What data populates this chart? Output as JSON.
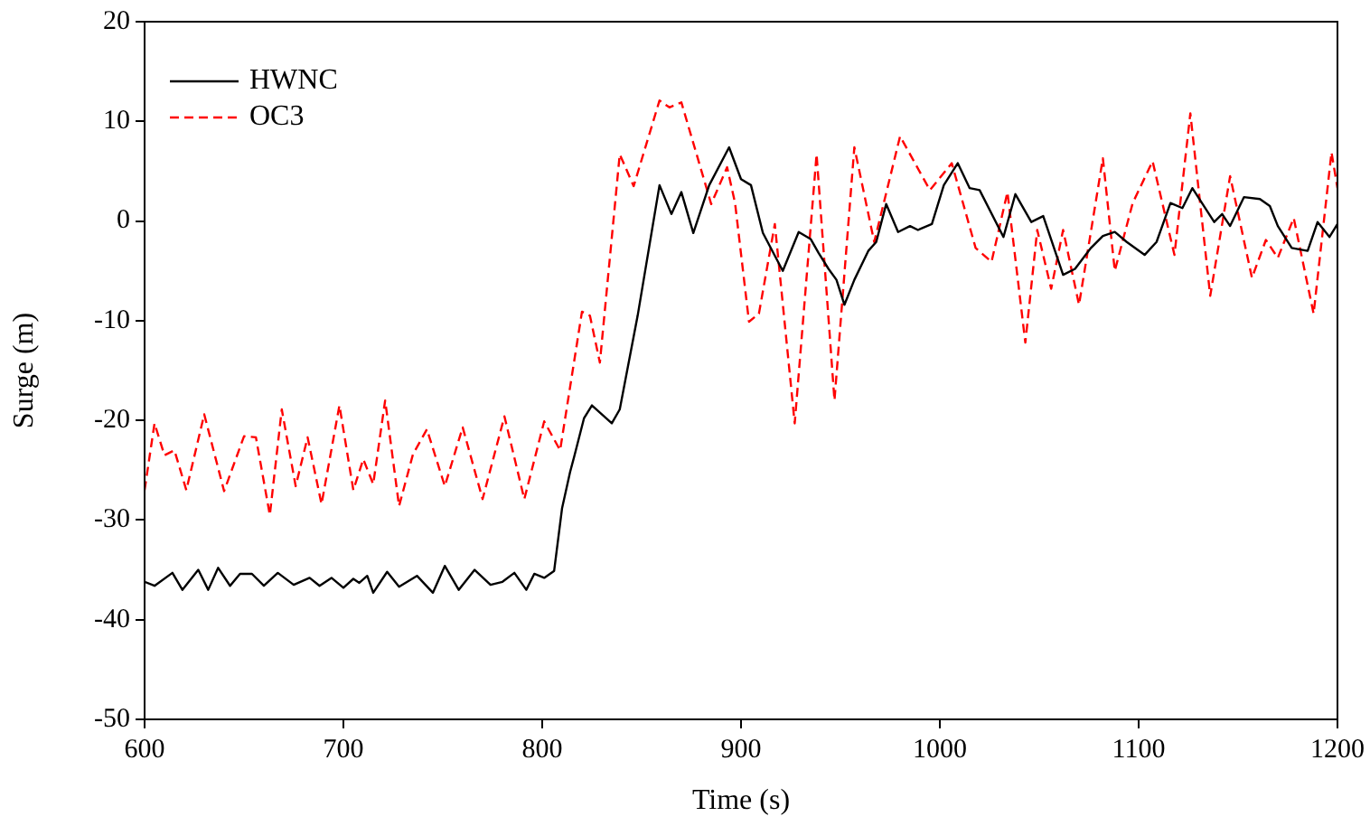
{
  "chart_data": {
    "type": "line",
    "xlabel": "Time (s)",
    "ylabel": "Surge (m)",
    "xlim": [
      600,
      1200
    ],
    "xticks": [
      600,
      700,
      800,
      900,
      1000,
      1100,
      1200
    ],
    "ylim": [
      -50,
      20
    ],
    "yticks": [
      -50,
      -40,
      -30,
      -20,
      -10,
      0,
      10,
      20
    ],
    "grid": false,
    "legend": "top left",
    "marker": "none",
    "series": [
      {
        "name": "HWNC",
        "color": "#000000",
        "line_style": "solid",
        "x": [
          600,
          605,
          614,
          619,
          627,
          632,
          637,
          643,
          648,
          654,
          660,
          667,
          675,
          683,
          688,
          694,
          700,
          705,
          708,
          712,
          715,
          722,
          728,
          737,
          745,
          751,
          758,
          766,
          774,
          780,
          786,
          792,
          796,
          801,
          806,
          810,
          814,
          816,
          821,
          825,
          835,
          839,
          848,
          859,
          865,
          870,
          876,
          884,
          894,
          900,
          905,
          911,
          921,
          929,
          935,
          939,
          944,
          948,
          952,
          957,
          964,
          968,
          973,
          979,
          985,
          989,
          996,
          1002,
          1009,
          1015,
          1020,
          1032,
          1038,
          1046,
          1052,
          1062,
          1068,
          1076,
          1082,
          1088,
          1094,
          1103,
          1109,
          1116,
          1122,
          1127,
          1138,
          1142,
          1146,
          1153,
          1161,
          1166,
          1170,
          1177,
          1185,
          1190,
          1196,
          1200
        ],
        "values": [
          -36.2,
          -36.6,
          -35.3,
          -37.0,
          -35.0,
          -37.0,
          -34.8,
          -36.6,
          -35.4,
          -35.4,
          -36.6,
          -35.3,
          -36.5,
          -35.8,
          -36.6,
          -35.8,
          -36.8,
          -35.9,
          -36.3,
          -35.6,
          -37.3,
          -35.2,
          -36.7,
          -35.6,
          -37.3,
          -34.6,
          -37.0,
          -35.0,
          -36.5,
          -36.2,
          -35.3,
          -37.0,
          -35.4,
          -35.8,
          -35.1,
          -28.8,
          -25.2,
          -23.7,
          -19.8,
          -18.5,
          -20.3,
          -18.9,
          -9.5,
          3.6,
          0.7,
          2.9,
          -1.2,
          3.6,
          7.4,
          4.2,
          3.6,
          -1.2,
          -5.0,
          -1.1,
          -1.8,
          -3.2,
          -4.8,
          -5.9,
          -8.4,
          -5.9,
          -3.0,
          -2.1,
          1.7,
          -1.1,
          -0.5,
          -0.9,
          -0.3,
          3.6,
          5.8,
          3.3,
          3.1,
          -1.6,
          2.7,
          -0.1,
          0.5,
          -5.4,
          -4.8,
          -2.7,
          -1.5,
          -1.1,
          -2.1,
          -3.4,
          -2.1,
          1.8,
          1.3,
          3.3,
          -0.1,
          0.7,
          -0.5,
          2.4,
          2.2,
          1.5,
          -0.5,
          -2.7,
          -3.0,
          -0.1,
          -1.6,
          -0.3
        ]
      },
      {
        "name": "OC3",
        "color": "#ff0000",
        "line_style": "dashed",
        "x": [
          600,
          605,
          610,
          615,
          621,
          630,
          640,
          650,
          656,
          663,
          669,
          676,
          682,
          689,
          698,
          705,
          710,
          715,
          721,
          728,
          735,
          742,
          751,
          760,
          770,
          781,
          791,
          801,
          809,
          820,
          824,
          829,
          839,
          846,
          859,
          864,
          870,
          885,
          893,
          897,
          904,
          909,
          917,
          927,
          938,
          947,
          957,
          967,
          980,
          995,
          1006,
          1018,
          1026,
          1034,
          1043,
          1049,
          1056,
          1062,
          1070,
          1082,
          1088,
          1097,
          1107,
          1118,
          1126,
          1136,
          1146,
          1157,
          1164,
          1170,
          1178,
          1188,
          1197,
          1200
        ],
        "values": [
          -27.0,
          -20.3,
          -23.5,
          -23.0,
          -27.0,
          -19.4,
          -27.1,
          -21.6,
          -21.7,
          -29.5,
          -18.9,
          -26.6,
          -21.7,
          -28.4,
          -18.5,
          -27.0,
          -23.9,
          -26.4,
          -18.0,
          -28.6,
          -23.4,
          -20.9,
          -26.6,
          -20.7,
          -27.9,
          -19.6,
          -27.9,
          -20.1,
          -23.0,
          -9.1,
          -9.5,
          -14.2,
          6.7,
          3.5,
          12.1,
          11.4,
          11.9,
          1.7,
          5.4,
          1.8,
          -10.1,
          -9.3,
          -0.3,
          -20.3,
          6.7,
          -18.0,
          7.4,
          -2.1,
          8.5,
          3.1,
          5.8,
          -2.7,
          -4.1,
          2.9,
          -12.2,
          -0.9,
          -6.8,
          -0.9,
          -8.4,
          6.3,
          -5.0,
          1.8,
          6.0,
          -3.4,
          10.8,
          -7.5,
          4.5,
          -5.7,
          -1.9,
          -3.7,
          0.3,
          -9.3,
          6.9,
          3.3
        ]
      }
    ]
  }
}
